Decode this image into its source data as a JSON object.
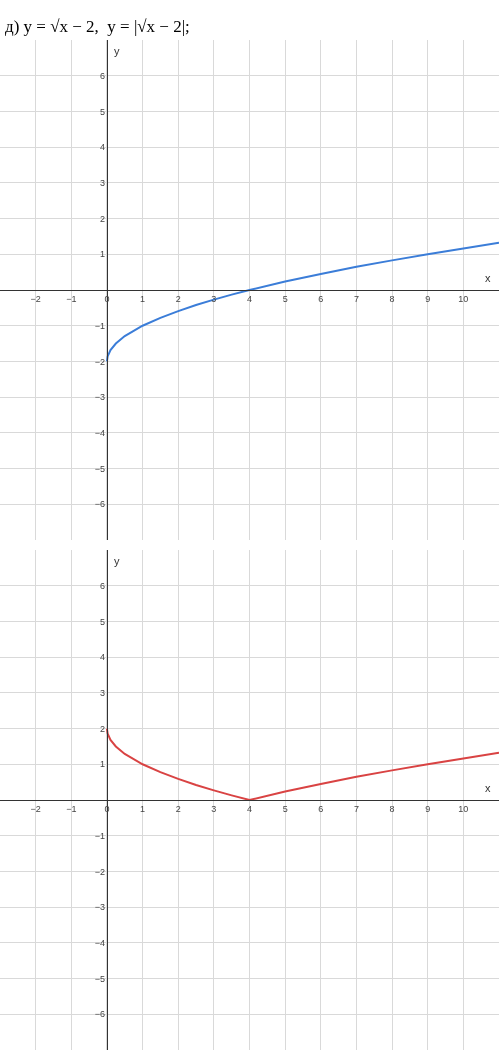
{
  "chart_data": [
    {
      "type": "line",
      "title": "д) y = √x − 2,  y = |√x − 2|;",
      "xlabel": "x",
      "ylabel": "y",
      "x": [
        0,
        0.02,
        0.1,
        0.25,
        0.5,
        1,
        1.5,
        2,
        2.5,
        3,
        3.5,
        4,
        5,
        6,
        7,
        8,
        9,
        10,
        11
      ],
      "series": [
        {
          "color": "#3b7dd8",
          "values": [
            -2,
            -1.86,
            -1.68,
            -1.5,
            -1.29,
            -1,
            -0.78,
            -0.59,
            -0.42,
            -0.27,
            -0.13,
            0,
            0.24,
            0.45,
            0.65,
            0.83,
            1,
            1.16,
            1.32
          ]
        }
      ],
      "xlim": [
        -3,
        11
      ],
      "ylim": [
        -7,
        7
      ],
      "xticks": [
        -2,
        -1,
        0,
        1,
        2,
        3,
        4,
        5,
        6,
        7,
        8,
        9,
        10
      ],
      "yticks": [
        -6,
        -5,
        -4,
        -3,
        -2,
        -1,
        1,
        2,
        3,
        4,
        5,
        6
      ],
      "grid": true
    },
    {
      "type": "line",
      "xlabel": "x",
      "ylabel": "y",
      "x": [
        0,
        0.02,
        0.1,
        0.25,
        0.5,
        1,
        1.5,
        2,
        2.5,
        3,
        3.5,
        4,
        5,
        6,
        7,
        8,
        9,
        10,
        11
      ],
      "series": [
        {
          "color": "#d94343",
          "values": [
            2,
            1.86,
            1.68,
            1.5,
            1.29,
            1,
            0.78,
            0.59,
            0.42,
            0.27,
            0.13,
            0,
            0.24,
            0.45,
            0.65,
            0.83,
            1,
            1.16,
            1.32
          ]
        }
      ],
      "xlim": [
        -3,
        11
      ],
      "ylim": [
        -7,
        7
      ],
      "xticks": [
        -2,
        -1,
        0,
        1,
        2,
        3,
        4,
        5,
        6,
        7,
        8,
        9,
        10
      ],
      "yticks": [
        -6,
        -5,
        -4,
        -3,
        -2,
        -1,
        1,
        2,
        3,
        4,
        5,
        6
      ],
      "grid": true
    }
  ]
}
